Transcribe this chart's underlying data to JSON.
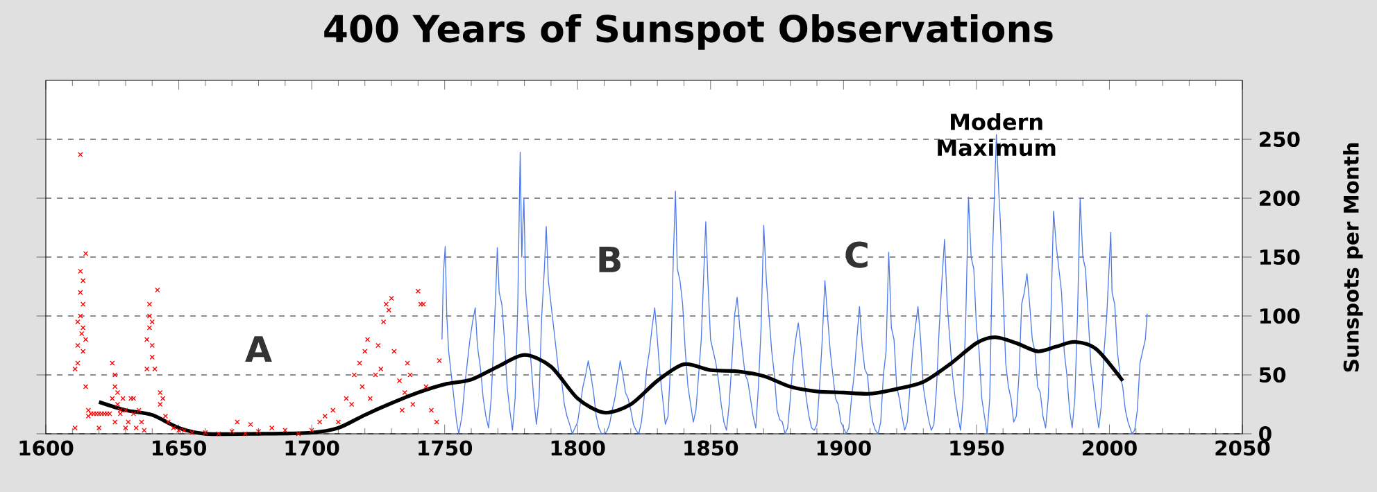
{
  "chart_data": {
    "type": "line",
    "title": "400 Years of Sunspot Observations",
    "ylabel": "Sunspots per Month",
    "xlim": [
      1600,
      2050
    ],
    "xticks": [
      1600,
      1650,
      1700,
      1750,
      1800,
      1850,
      1900,
      1950,
      2000,
      2050
    ],
    "ylim": [
      0,
      300
    ],
    "yticks": [
      0,
      50,
      100,
      150,
      200,
      250
    ],
    "grid": "y",
    "annotations": [
      "A",
      "B",
      "C",
      {
        "text": "Modern Maximum",
        "x": 1957.5,
        "y": 254
      }
    ],
    "series": [
      {
        "type": "scatter",
        "marker": "cross",
        "color": "#ff0000",
        "x": [
          1611,
          1611,
          1612,
          1612,
          1612,
          1613,
          1613,
          1613,
          1613,
          1613.5,
          1614,
          1614,
          1614,
          1614,
          1615,
          1615,
          1615,
          1616,
          1616,
          1617,
          1618,
          1619,
          1620,
          1620,
          1621,
          1622,
          1623,
          1624,
          1625,
          1625,
          1626,
          1626,
          1626,
          1627,
          1627,
          1628,
          1628,
          1629,
          1630,
          1630,
          1631,
          1632,
          1633,
          1633,
          1634,
          1635,
          1636,
          1637,
          1638,
          1638,
          1639,
          1639,
          1639,
          1640,
          1640,
          1640,
          1641,
          1642,
          1643,
          1643,
          1644,
          1645,
          1646,
          1648,
          1650,
          1652,
          1655,
          1660,
          1665,
          1670,
          1672,
          1675,
          1677,
          1680,
          1685,
          1690,
          1695,
          1700,
          1703,
          1705,
          1708,
          1710,
          1713,
          1715,
          1716,
          1718,
          1719,
          1720,
          1721,
          1722,
          1724,
          1725,
          1726,
          1727,
          1728,
          1729,
          1730,
          1731,
          1733,
          1734,
          1735,
          1736,
          1737,
          1738,
          1740,
          1741,
          1742,
          1743,
          1745,
          1747,
          1748
        ],
        "values": [
          5,
          55,
          60,
          75,
          95,
          100,
          120,
          138,
          237,
          85,
          90,
          110,
          130,
          70,
          153,
          80,
          40,
          15,
          20,
          17,
          17,
          17,
          17,
          5,
          17,
          17,
          17,
          17,
          30,
          60,
          50,
          40,
          10,
          35,
          25,
          20,
          17,
          30,
          20,
          5,
          10,
          30,
          17,
          30,
          5,
          20,
          10,
          3,
          55,
          80,
          90,
          100,
          110,
          75,
          65,
          95,
          55,
          122,
          25,
          35,
          30,
          15,
          10,
          5,
          3,
          3,
          1,
          1,
          0,
          2,
          10,
          0,
          8,
          2,
          5,
          3,
          0,
          3,
          10,
          15,
          20,
          10,
          30,
          25,
          50,
          60,
          40,
          70,
          80,
          30,
          50,
          75,
          55,
          95,
          110,
          105,
          115,
          70,
          45,
          20,
          35,
          60,
          50,
          25,
          121,
          110,
          110,
          40,
          20,
          10,
          62
        ]
      },
      {
        "type": "line",
        "color": "#4f7be8",
        "x": [
          1749,
          1749.5,
          1750.2,
          1750.8,
          1751.5,
          1752.5,
          1753.5,
          1754.5,
          1755.3,
          1756.5,
          1757.5,
          1758.5,
          1759.5,
          1760.5,
          1761.5,
          1762.3,
          1763.5,
          1764.5,
          1765.5,
          1766.5,
          1767.5,
          1768.5,
          1769.3,
          1769.8,
          1770.5,
          1771.5,
          1772.5,
          1773.5,
          1774.5,
          1775.5,
          1776.5,
          1777.5,
          1778.4,
          1779,
          1779.8,
          1780.5,
          1781.5,
          1782.5,
          1783.5,
          1784.5,
          1785.5,
          1786.5,
          1787.5,
          1788.2,
          1789,
          1790,
          1791,
          1792,
          1793,
          1794,
          1795,
          1796,
          1797,
          1798,
          1799,
          1800,
          1801,
          1802,
          1803,
          1804,
          1805,
          1806,
          1807,
          1808,
          1809,
          1810,
          1811,
          1812,
          1813,
          1814,
          1815,
          1816,
          1817,
          1818,
          1819,
          1820,
          1821,
          1822,
          1823,
          1824,
          1825,
          1826,
          1827,
          1828,
          1829,
          1830,
          1831,
          1832,
          1833,
          1834,
          1835,
          1836,
          1836.8,
          1837.5,
          1838.5,
          1839.5,
          1840.5,
          1841.5,
          1842.5,
          1843.5,
          1844.5,
          1845.5,
          1846.5,
          1847.5,
          1848.2,
          1849,
          1850,
          1851,
          1852,
          1853,
          1854,
          1855,
          1856,
          1857,
          1858,
          1859,
          1860,
          1861,
          1862,
          1863,
          1864,
          1865,
          1866,
          1867,
          1868,
          1869,
          1870,
          1871,
          1872,
          1873,
          1874,
          1875,
          1876,
          1877,
          1878,
          1879,
          1880,
          1881,
          1882,
          1883,
          1884,
          1885,
          1886,
          1887,
          1888,
          1889,
          1890,
          1891,
          1892,
          1893,
          1894,
          1895,
          1896,
          1897,
          1898,
          1899,
          1900,
          1901,
          1902,
          1903,
          1904,
          1905,
          1906,
          1907,
          1908,
          1909,
          1910,
          1911,
          1912,
          1913,
          1914,
          1915,
          1916,
          1917,
          1918,
          1919,
          1920,
          1921,
          1922,
          1923,
          1924,
          1925,
          1926,
          1927,
          1928,
          1929,
          1930,
          1931,
          1932,
          1933,
          1934,
          1935,
          1936,
          1937,
          1938,
          1939,
          1940,
          1941,
          1942,
          1943,
          1944,
          1945,
          1946,
          1947,
          1948,
          1949,
          1950,
          1951,
          1952,
          1953,
          1954,
          1955,
          1956,
          1957.5,
          1958.5,
          1959,
          1960,
          1961,
          1962,
          1963,
          1964,
          1965,
          1966,
          1967,
          1968,
          1969,
          1970,
          1971,
          1972,
          1973,
          1974,
          1975,
          1976,
          1977,
          1978,
          1979,
          1980,
          1981,
          1982,
          1983,
          1984,
          1985,
          1986,
          1987,
          1988,
          1989,
          1990,
          1991,
          1992,
          1993,
          1994,
          1995,
          1996,
          1997,
          1998,
          1999,
          2000.5,
          2001,
          2002,
          2003,
          2004,
          2005,
          2006,
          2007,
          2008.5,
          2009.5,
          2010.5,
          2011.5,
          2012.5,
          2013.5,
          2014.2
        ],
        "values": [
          80,
          135,
          159,
          100,
          70,
          50,
          30,
          10,
          0,
          15,
          40,
          60,
          80,
          95,
          107,
          75,
          55,
          30,
          15,
          5,
          30,
          80,
          125,
          158,
          120,
          110,
          80,
          40,
          20,
          3,
          30,
          110,
          239,
          150,
          200,
          120,
          90,
          60,
          30,
          8,
          30,
          100,
          140,
          176,
          130,
          110,
          90,
          70,
          50,
          45,
          25,
          15,
          8,
          0,
          5,
          10,
          25,
          40,
          50,
          62,
          50,
          35,
          15,
          5,
          0,
          0,
          2,
          8,
          20,
          30,
          45,
          62,
          50,
          35,
          30,
          20,
          8,
          3,
          0,
          10,
          30,
          55,
          70,
          90,
          107,
          80,
          50,
          30,
          8,
          15,
          60,
          150,
          206,
          140,
          130,
          110,
          70,
          40,
          25,
          10,
          20,
          50,
          80,
          140,
          180,
          130,
          80,
          70,
          60,
          45,
          25,
          10,
          3,
          25,
          60,
          100,
          116,
          90,
          70,
          50,
          45,
          30,
          15,
          5,
          40,
          90,
          177,
          130,
          100,
          70,
          50,
          20,
          12,
          10,
          0,
          5,
          30,
          60,
          80,
          94,
          75,
          50,
          30,
          15,
          5,
          3,
          8,
          40,
          80,
          130,
          100,
          70,
          50,
          30,
          25,
          10,
          5,
          0,
          5,
          30,
          50,
          80,
          108,
          75,
          55,
          50,
          25,
          10,
          3,
          0,
          10,
          50,
          70,
          154,
          90,
          80,
          40,
          30,
          15,
          3,
          10,
          40,
          70,
          90,
          108,
          80,
          40,
          25,
          12,
          3,
          8,
          40,
          90,
          130,
          165,
          110,
          80,
          50,
          30,
          15,
          3,
          30,
          100,
          201,
          150,
          140,
          90,
          70,
          30,
          15,
          0,
          30,
          150,
          254,
          200,
          180,
          120,
          60,
          40,
          30,
          10,
          15,
          50,
          110,
          120,
          136,
          110,
          80,
          70,
          40,
          35,
          15,
          5,
          30,
          100,
          189,
          160,
          140,
          120,
          70,
          50,
          20,
          5,
          30,
          100,
          200,
          150,
          140,
          100,
          60,
          40,
          20,
          5,
          25,
          70,
          100,
          171,
          120,
          110,
          70,
          50,
          40,
          20,
          10,
          0,
          3,
          20,
          60,
          70,
          80,
          102
        ]
      },
      {
        "type": "line",
        "color": "#000000",
        "x": [
          1620,
          1630,
          1640,
          1650,
          1660,
          1680,
          1700,
          1710,
          1720,
          1730,
          1740,
          1750,
          1760,
          1770,
          1780,
          1790,
          1800,
          1810,
          1820,
          1830,
          1840,
          1850,
          1860,
          1870,
          1880,
          1890,
          1900,
          1910,
          1920,
          1930,
          1940,
          1950,
          1957,
          1965,
          1973,
          1980,
          1987,
          1995,
          2005
        ],
        "values": [
          27,
          20,
          16,
          5,
          0,
          0,
          1,
          5,
          16,
          26,
          35,
          42,
          46,
          57,
          67,
          57,
          30,
          18,
          25,
          45,
          59,
          54,
          53,
          49,
          40,
          36,
          35,
          34,
          38,
          44,
          59,
          77,
          82,
          77,
          70,
          74,
          78,
          72,
          45
        ]
      }
    ]
  }
}
